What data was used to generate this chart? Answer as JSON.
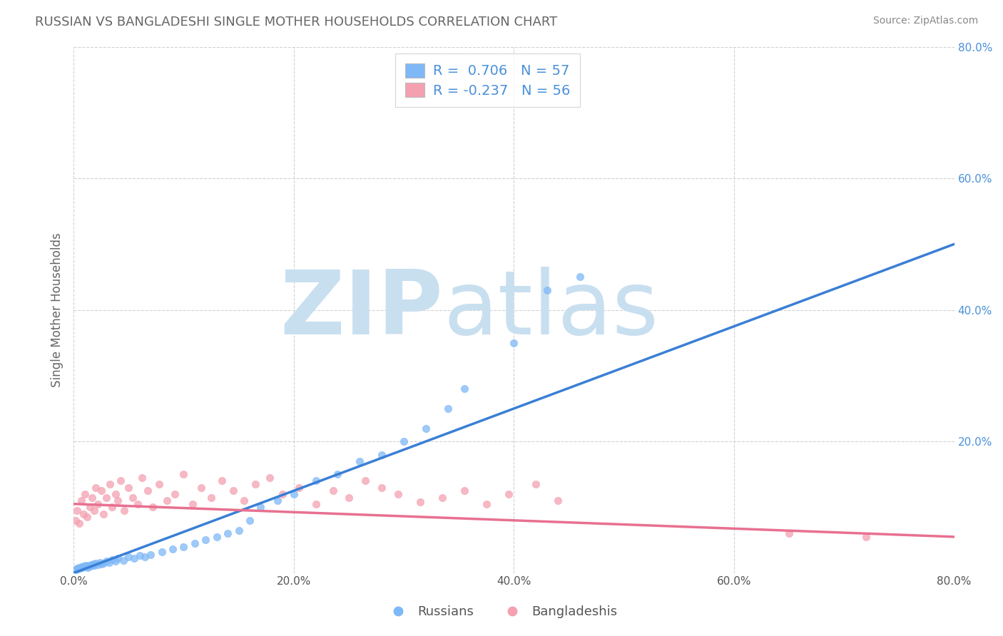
{
  "title": "RUSSIAN VS BANGLADESHI SINGLE MOTHER HOUSEHOLDS CORRELATION CHART",
  "source": "Source: ZipAtlas.com",
  "ylabel": "Single Mother Households",
  "xlabel": "",
  "xlim": [
    0.0,
    0.8
  ],
  "ylim": [
    0.0,
    0.8
  ],
  "xtick_labels": [
    "0.0%",
    "20.0%",
    "40.0%",
    "60.0%",
    "80.0%"
  ],
  "xtick_vals": [
    0.0,
    0.2,
    0.4,
    0.6,
    0.8
  ],
  "ytick_labels": [
    "",
    "20.0%",
    "40.0%",
    "60.0%",
    "80.0%"
  ],
  "ytick_vals": [
    0.0,
    0.2,
    0.4,
    0.6,
    0.8
  ],
  "russian_R": 0.706,
  "russian_N": 57,
  "bangladeshi_R": -0.237,
  "bangladeshi_N": 56,
  "russian_color": "#7EB8F7",
  "bangladeshi_color": "#F4A0B0",
  "russian_line_color": "#3A7FD5",
  "bangladeshi_line_color": "#E87090",
  "title_color": "#666666",
  "source_color": "#888888",
  "grid_color": "#CCCCCC",
  "background_color": "#FFFFFF",
  "watermark_zip": "ZIP",
  "watermark_atlas": "atlas",
  "watermark_color_zip": "#C8DFF0",
  "watermark_color_atlas": "#C8DFF0",
  "legend_label_russian": "Russians",
  "legend_label_bangladeshi": "Bangladeshis",
  "russian_line_x0": 0.0,
  "russian_line_y0": 0.0,
  "russian_line_x1": 0.8,
  "russian_line_y1": 0.5,
  "bangladeshi_line_x0": 0.0,
  "bangladeshi_line_y0": 0.105,
  "bangladeshi_line_x1": 0.8,
  "bangladeshi_line_y1": 0.055,
  "russian_scatter_x": [
    0.002,
    0.003,
    0.004,
    0.005,
    0.006,
    0.007,
    0.008,
    0.009,
    0.01,
    0.011,
    0.012,
    0.013,
    0.014,
    0.015,
    0.016,
    0.017,
    0.018,
    0.019,
    0.02,
    0.022,
    0.024,
    0.025,
    0.027,
    0.03,
    0.032,
    0.035,
    0.038,
    0.04,
    0.045,
    0.05,
    0.055,
    0.06,
    0.065,
    0.07,
    0.08,
    0.09,
    0.1,
    0.11,
    0.12,
    0.13,
    0.14,
    0.15,
    0.16,
    0.17,
    0.185,
    0.2,
    0.22,
    0.24,
    0.26,
    0.28,
    0.3,
    0.32,
    0.34,
    0.355,
    0.4,
    0.43,
    0.46
  ],
  "russian_scatter_y": [
    0.005,
    0.007,
    0.006,
    0.008,
    0.007,
    0.009,
    0.008,
    0.01,
    0.009,
    0.011,
    0.01,
    0.008,
    0.012,
    0.01,
    0.013,
    0.011,
    0.014,
    0.012,
    0.015,
    0.013,
    0.016,
    0.014,
    0.015,
    0.018,
    0.016,
    0.02,
    0.018,
    0.022,
    0.019,
    0.025,
    0.022,
    0.027,
    0.025,
    0.028,
    0.032,
    0.036,
    0.04,
    0.045,
    0.05,
    0.055,
    0.06,
    0.065,
    0.08,
    0.1,
    0.11,
    0.12,
    0.14,
    0.15,
    0.17,
    0.18,
    0.2,
    0.22,
    0.25,
    0.28,
    0.35,
    0.43,
    0.45
  ],
  "bangladeshi_scatter_x": [
    0.002,
    0.003,
    0.005,
    0.007,
    0.009,
    0.01,
    0.012,
    0.015,
    0.017,
    0.019,
    0.02,
    0.022,
    0.025,
    0.027,
    0.03,
    0.033,
    0.035,
    0.038,
    0.04,
    0.043,
    0.046,
    0.05,
    0.054,
    0.058,
    0.062,
    0.067,
    0.072,
    0.078,
    0.085,
    0.092,
    0.1,
    0.108,
    0.116,
    0.125,
    0.135,
    0.145,
    0.155,
    0.165,
    0.178,
    0.19,
    0.205,
    0.22,
    0.236,
    0.25,
    0.265,
    0.28,
    0.295,
    0.315,
    0.335,
    0.355,
    0.375,
    0.395,
    0.42,
    0.44,
    0.65,
    0.72
  ],
  "bangladeshi_scatter_y": [
    0.08,
    0.095,
    0.075,
    0.11,
    0.09,
    0.12,
    0.085,
    0.1,
    0.115,
    0.095,
    0.13,
    0.105,
    0.125,
    0.09,
    0.115,
    0.135,
    0.1,
    0.12,
    0.11,
    0.14,
    0.095,
    0.13,
    0.115,
    0.105,
    0.145,
    0.125,
    0.1,
    0.135,
    0.11,
    0.12,
    0.15,
    0.105,
    0.13,
    0.115,
    0.14,
    0.125,
    0.11,
    0.135,
    0.145,
    0.12,
    0.13,
    0.105,
    0.125,
    0.115,
    0.14,
    0.13,
    0.12,
    0.108,
    0.115,
    0.125,
    0.105,
    0.12,
    0.135,
    0.11,
    0.06,
    0.055
  ]
}
